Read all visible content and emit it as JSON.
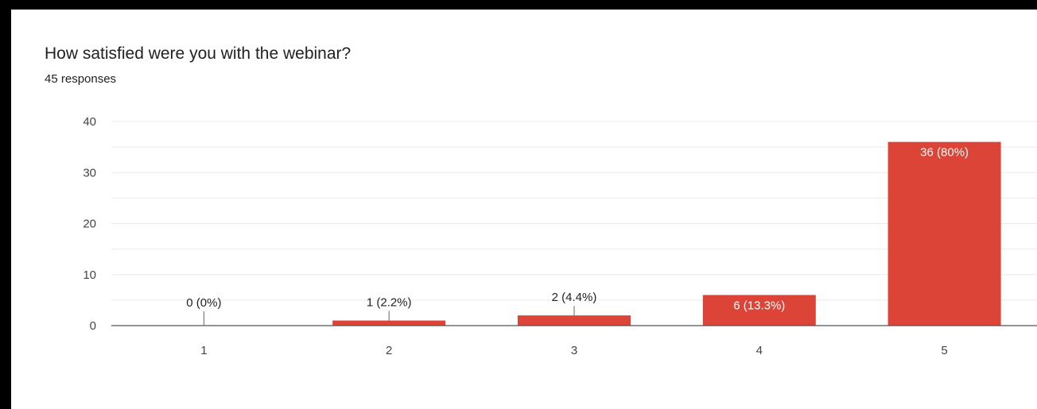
{
  "chart_data": {
    "type": "bar",
    "title": "How satisfied were you with the webinar?",
    "subtitle": "45 responses",
    "categories": [
      "1",
      "2",
      "3",
      "4",
      "5"
    ],
    "values": [
      0,
      1,
      2,
      6,
      36
    ],
    "data_labels": [
      "0 (0%)",
      "1 (2.2%)",
      "2 (4.4%)",
      "6 (13.3%)",
      "36 (80%)"
    ],
    "ylim": [
      0,
      40
    ],
    "yticks": [
      "0",
      "10",
      "20",
      "30",
      "40"
    ],
    "xlabel": "",
    "ylabel": "",
    "grid": true,
    "legend": "none",
    "colors": {
      "bar": "#db4437",
      "gridline": "#ebebeb",
      "axis": "#555555",
      "label_inside": "#ffffff",
      "label_outside": "#222222"
    }
  }
}
